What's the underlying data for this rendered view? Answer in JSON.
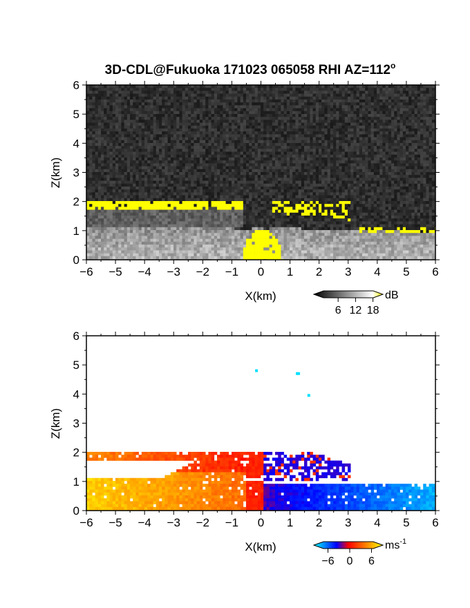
{
  "title": {
    "main": "3D-CDL@Fukuoka 171023 065058 RHI AZ=112",
    "degree": "o"
  },
  "chart_data": [
    {
      "type": "heatmap",
      "quantity": "SNR",
      "xlabel": "X(km)",
      "ylabel": "Z(km)",
      "xlim": [
        -6,
        6
      ],
      "ylim": [
        0,
        6
      ],
      "xticks": [
        -6,
        -5,
        -4,
        -3,
        -2,
        -1,
        0,
        1,
        2,
        3,
        4,
        5,
        6
      ],
      "yticks": [
        0,
        1,
        2,
        3,
        4,
        5,
        6
      ],
      "colorbar": {
        "unit": "dB",
        "ticks": [
          6,
          12,
          18
        ],
        "range": [
          0,
          20
        ],
        "colors": [
          "#000000",
          "#ffffff",
          "#ffff00"
        ]
      }
    },
    {
      "type": "heatmap",
      "quantity": "Doppler velocity",
      "xlabel": "X(km)",
      "ylabel": "Z(km)",
      "xlim": [
        -6,
        6
      ],
      "ylim": [
        0,
        6
      ],
      "xticks": [
        -6,
        -5,
        -4,
        -3,
        -2,
        -1,
        0,
        1,
        2,
        3,
        4,
        5,
        6
      ],
      "yticks": [
        0,
        1,
        2,
        3,
        4,
        5,
        6
      ],
      "colorbar": {
        "unit": "ms",
        "unit_exp": "-1",
        "ticks": [
          -6,
          0,
          6
        ],
        "range": [
          -8,
          8
        ],
        "colors": [
          "#00ffff",
          "#0000ff",
          "#ff0000",
          "#ffff00"
        ]
      }
    }
  ]
}
